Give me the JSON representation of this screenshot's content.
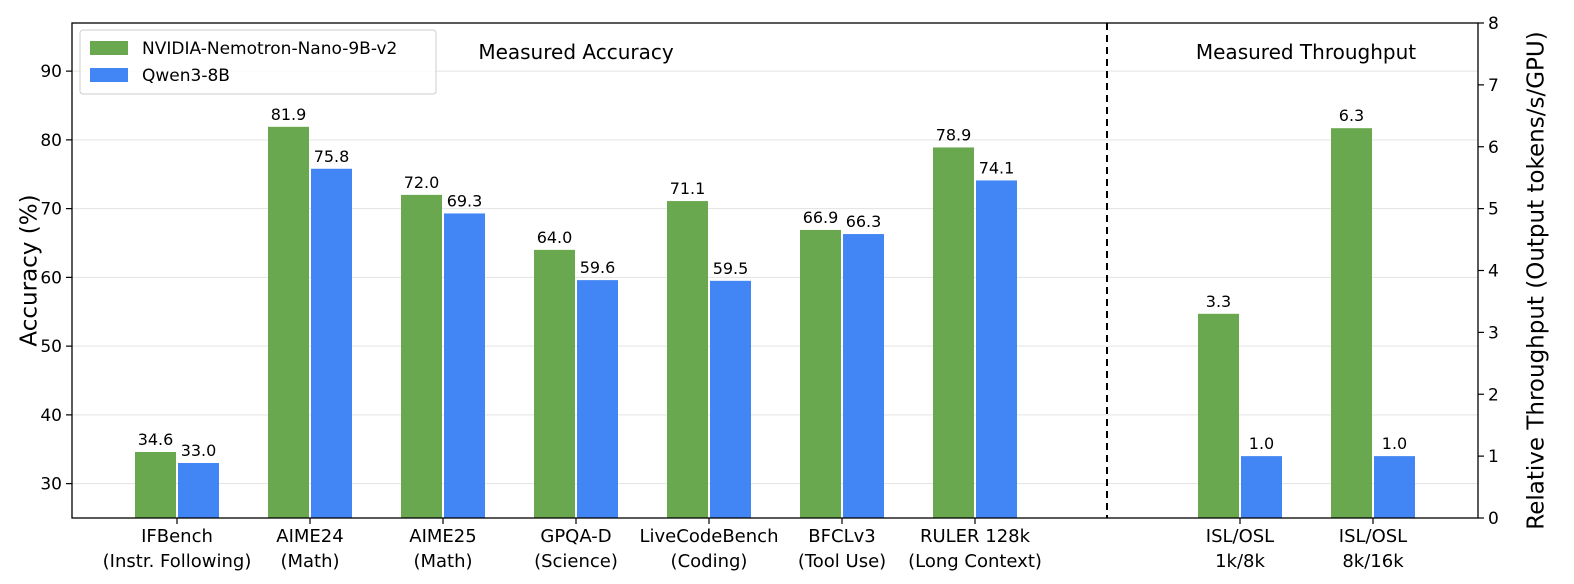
{
  "chart_data": {
    "type": "bar",
    "section_labels": [
      "Measured Accuracy",
      "Measured Throughput"
    ],
    "ylabel_left": "Accuracy (%)",
    "ylabel_right": "Relative Throughput (Output tokens/s/GPU)",
    "ylim_left": [
      25,
      97
    ],
    "ylim_right": [
      0,
      8
    ],
    "yticks_left": [
      30,
      40,
      50,
      60,
      70,
      80,
      90
    ],
    "yticks_right": [
      0,
      1,
      2,
      3,
      4,
      5,
      6,
      7,
      8
    ],
    "grid": true,
    "legend_position": "top-left",
    "colors": {
      "nemotron": "#6aa84f",
      "qwen": "#4285f4"
    },
    "series": [
      {
        "name": "NVIDIA-Nemotron-Nano-9B-v2",
        "color": "#6aa84f"
      },
      {
        "name": "Qwen3-8B",
        "color": "#4285f4"
      }
    ],
    "accuracy": {
      "categories": [
        [
          "IFBench",
          "(Instr. Following)"
        ],
        [
          "AIME24",
          "(Math)"
        ],
        [
          "AIME25",
          "(Math)"
        ],
        [
          "GPQA-D",
          "(Science)"
        ],
        [
          "LiveCodeBench",
          "(Coding)"
        ],
        [
          "BFCLv3",
          "(Tool Use)"
        ],
        [
          "RULER 128k",
          "(Long Context)"
        ]
      ],
      "nemotron": [
        34.6,
        81.9,
        72.0,
        64.0,
        71.1,
        66.9,
        78.9
      ],
      "qwen": [
        33.0,
        75.8,
        69.3,
        59.6,
        59.5,
        66.3,
        74.1
      ],
      "labels_nemotron": [
        "34.6",
        "81.9",
        "72.0",
        "64.0",
        "71.1",
        "66.9",
        "78.9"
      ],
      "labels_qwen": [
        "33.0",
        "75.8",
        "69.3",
        "59.6",
        "59.5",
        "66.3",
        "74.1"
      ]
    },
    "throughput": {
      "categories": [
        [
          "ISL/OSL",
          "1k/8k"
        ],
        [
          "ISL/OSL",
          "8k/16k"
        ]
      ],
      "nemotron": [
        3.3,
        6.3
      ],
      "qwen": [
        1.0,
        1.0
      ],
      "labels_nemotron": [
        "3.3",
        "6.3"
      ],
      "labels_qwen": [
        "1.0",
        "1.0"
      ]
    }
  }
}
